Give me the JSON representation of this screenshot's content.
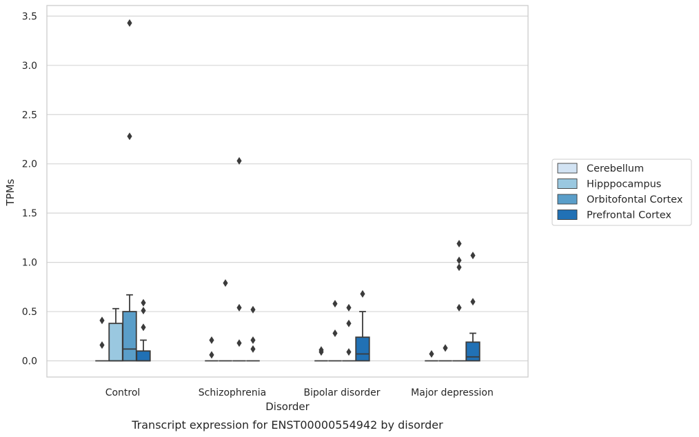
{
  "chart_data": {
    "type": "box",
    "caption": "Transcript expression for ENST00000554942 by disorder",
    "xlabel": "Disorder",
    "ylabel": "TPMs",
    "ylim": [
      -0.17,
      3.6
    ],
    "yticks": [
      "0.0",
      "0.5",
      "1.0",
      "1.5",
      "2.0",
      "2.5",
      "3.0",
      "3.5"
    ],
    "ytick_values": [
      0.0,
      0.5,
      1.0,
      1.5,
      2.0,
      2.5,
      3.0,
      3.5
    ],
    "grid": "horizontal",
    "legend_placement": "right",
    "categories": [
      "Control",
      "Schizophrenia",
      "Bipolar disorder",
      "Major depression"
    ],
    "series": [
      {
        "name": "Cerebellum",
        "color": "#d2e3f3",
        "boxes": [
          {
            "q1": 0.0,
            "median": 0.0,
            "q3": 0.0,
            "whisker_low": 0.0,
            "whisker_high": 0.0,
            "outliers": [
              0.16,
              0.41
            ]
          },
          {
            "q1": 0.0,
            "median": 0.0,
            "q3": 0.0,
            "whisker_low": 0.0,
            "whisker_high": 0.0,
            "outliers": [
              0.06,
              0.21
            ]
          },
          {
            "q1": 0.0,
            "median": 0.0,
            "q3": 0.0,
            "whisker_low": 0.0,
            "whisker_high": 0.0,
            "outliers": [
              0.09,
              0.11
            ]
          },
          {
            "q1": 0.0,
            "median": 0.0,
            "q3": 0.0,
            "whisker_low": 0.0,
            "whisker_high": 0.0,
            "outliers": [
              0.07
            ]
          }
        ]
      },
      {
        "name": "Hipppocampus",
        "color": "#9ac8e0",
        "boxes": [
          {
            "q1": 0.0,
            "median": 0.0,
            "q3": 0.38,
            "whisker_low": 0.0,
            "whisker_high": 0.53,
            "outliers": []
          },
          {
            "q1": 0.0,
            "median": 0.0,
            "q3": 0.0,
            "whisker_low": 0.0,
            "whisker_high": 0.0,
            "outliers": [
              0.79
            ]
          },
          {
            "q1": 0.0,
            "median": 0.0,
            "q3": 0.0,
            "whisker_low": 0.0,
            "whisker_high": 0.0,
            "outliers": [
              0.28,
              0.58
            ]
          },
          {
            "q1": 0.0,
            "median": 0.0,
            "q3": 0.0,
            "whisker_low": 0.0,
            "whisker_high": 0.0,
            "outliers": [
              0.13
            ]
          }
        ]
      },
      {
        "name": "Orbitofontal Cortex",
        "color": "#5a9ec9",
        "boxes": [
          {
            "q1": 0.0,
            "median": 0.12,
            "q3": 0.5,
            "whisker_low": 0.0,
            "whisker_high": 0.67,
            "outliers": [
              2.28,
              3.43
            ]
          },
          {
            "q1": 0.0,
            "median": 0.0,
            "q3": 0.0,
            "whisker_low": 0.0,
            "whisker_high": 0.0,
            "outliers": [
              0.18,
              0.54,
              2.03
            ]
          },
          {
            "q1": 0.0,
            "median": 0.0,
            "q3": 0.0,
            "whisker_low": 0.0,
            "whisker_high": 0.0,
            "outliers": [
              0.09,
              0.38,
              0.54
            ]
          },
          {
            "q1": 0.0,
            "median": 0.0,
            "q3": 0.0,
            "whisker_low": 0.0,
            "whisker_high": 0.0,
            "outliers": [
              0.54,
              0.95,
              1.02,
              1.19
            ]
          }
        ]
      },
      {
        "name": "Prefrontal Cortex",
        "color": "#2171b5",
        "boxes": [
          {
            "q1": 0.0,
            "median": 0.0,
            "q3": 0.1,
            "whisker_low": 0.0,
            "whisker_high": 0.21,
            "outliers": [
              0.34,
              0.51,
              0.59
            ]
          },
          {
            "q1": 0.0,
            "median": 0.0,
            "q3": 0.0,
            "whisker_low": 0.0,
            "whisker_high": 0.0,
            "outliers": [
              0.12,
              0.21,
              0.52
            ]
          },
          {
            "q1": 0.0,
            "median": 0.07,
            "q3": 0.24,
            "whisker_low": 0.0,
            "whisker_high": 0.5,
            "outliers": [
              0.68
            ]
          },
          {
            "q1": 0.0,
            "median": 0.04,
            "q3": 0.19,
            "whisker_low": 0.0,
            "whisker_high": 0.28,
            "outliers": [
              0.6,
              1.07
            ]
          }
        ]
      }
    ]
  }
}
